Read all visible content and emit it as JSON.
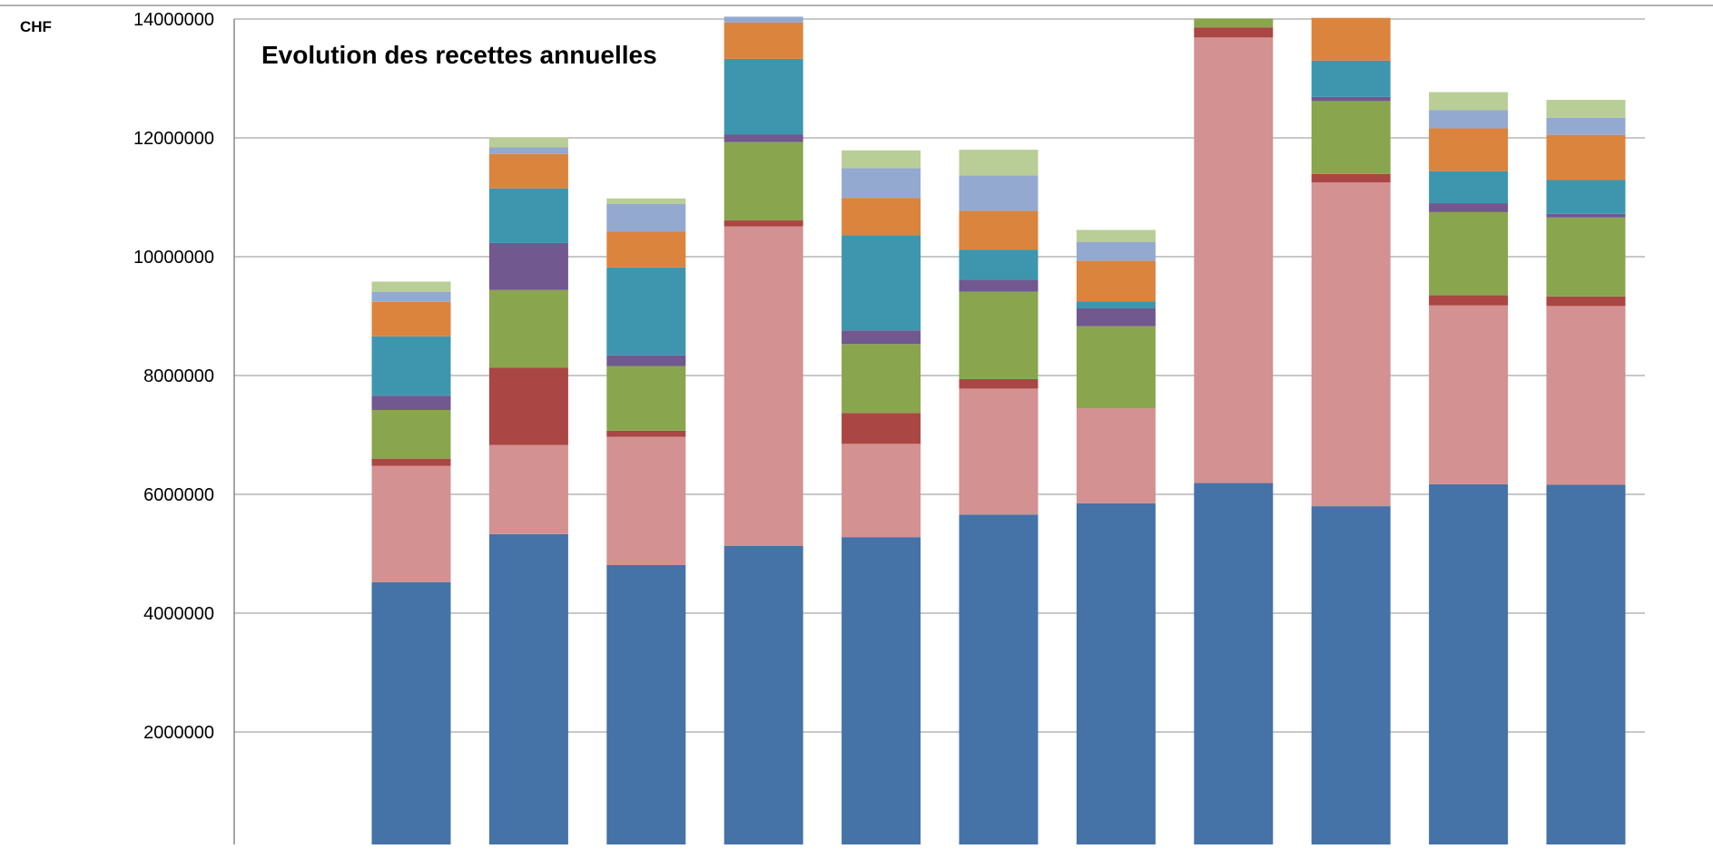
{
  "chart_data": {
    "type": "bar",
    "stacked": true,
    "title": "Evolution des recettes annuelles",
    "ylabel": "CHF",
    "xlabel": "",
    "ylim": [
      0,
      14000000
    ],
    "yticks": [
      0,
      2000000,
      4000000,
      6000000,
      8000000,
      10000000,
      12000000,
      14000000
    ],
    "grid": true,
    "categories": [
      "",
      "",
      "",
      "",
      "",
      "",
      "",
      "",
      "",
      "",
      ""
    ],
    "series": [
      {
        "color": "#4572A7",
        "values": [
          4520000,
          5330000,
          4810000,
          5130000,
          5280000,
          5660000,
          5850000,
          6190000,
          5800000,
          6170000,
          6160000
        ]
      },
      {
        "color": "#D39191",
        "values": [
          1960000,
          1500000,
          2160000,
          5380000,
          1570000,
          2120000,
          1600000,
          7500000,
          5450000,
          3010000,
          3010000
        ]
      },
      {
        "color": "#AA4643",
        "values": [
          120000,
          1300000,
          100000,
          100000,
          520000,
          160000,
          0,
          170000,
          140000,
          170000,
          160000
        ]
      },
      {
        "color": "#89A54E",
        "values": [
          820000,
          1310000,
          1090000,
          1320000,
          1160000,
          1470000,
          1380000,
          150000,
          1230000,
          1400000,
          1330000
        ]
      },
      {
        "color": "#71588F",
        "values": [
          240000,
          790000,
          180000,
          130000,
          230000,
          200000,
          300000,
          0,
          70000,
          150000,
          60000
        ]
      },
      {
        "color": "#3D96AE",
        "values": [
          1000000,
          920000,
          1480000,
          1270000,
          1600000,
          510000,
          120000,
          0,
          610000,
          540000,
          570000
        ]
      },
      {
        "color": "#DB843D",
        "values": [
          580000,
          580000,
          600000,
          610000,
          630000,
          650000,
          680000,
          0,
          720000,
          720000,
          760000
        ]
      },
      {
        "color": "#93A9CF",
        "values": [
          170000,
          110000,
          470000,
          100000,
          500000,
          600000,
          320000,
          0,
          0,
          310000,
          290000
        ]
      },
      {
        "color": "#B9CD96",
        "values": [
          170000,
          170000,
          90000,
          0,
          300000,
          430000,
          200000,
          0,
          0,
          300000,
          300000
        ]
      }
    ]
  }
}
